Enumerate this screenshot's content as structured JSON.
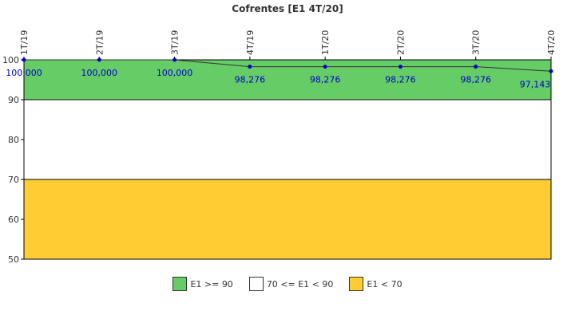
{
  "chart_data": {
    "type": "line",
    "title": "Cofrentes [E1 4T/20]",
    "categories": [
      "1T/19",
      "2T/19",
      "3T/19",
      "4T/19",
      "1T/20",
      "2T/20",
      "3T/20",
      "4T/20"
    ],
    "series": [
      {
        "values": [
          100.0,
          100.0,
          100.0,
          98.276,
          98.276,
          98.276,
          98.276,
          97.143
        ]
      }
    ],
    "data_labels": [
      "100,000",
      "100,000",
      "100,000",
      "98,276",
      "98,276",
      "98,276",
      "98,276",
      "97,143"
    ],
    "ylim": [
      50,
      100
    ],
    "yticks": [
      50,
      60,
      70,
      80,
      90,
      100
    ],
    "line_color": "#333333",
    "point_color": "#0000cc",
    "bands": [
      {
        "from": 90,
        "to": 100,
        "color": "#66cc66",
        "label": "E1 >= 90"
      },
      {
        "from": 70,
        "to": 90,
        "color": "#ffffff",
        "label": "70 <= E1 < 90"
      },
      {
        "from": 50,
        "to": 70,
        "color": "#ffcc33",
        "label": "E1 < 70"
      }
    ],
    "legend_position": "bottom"
  }
}
